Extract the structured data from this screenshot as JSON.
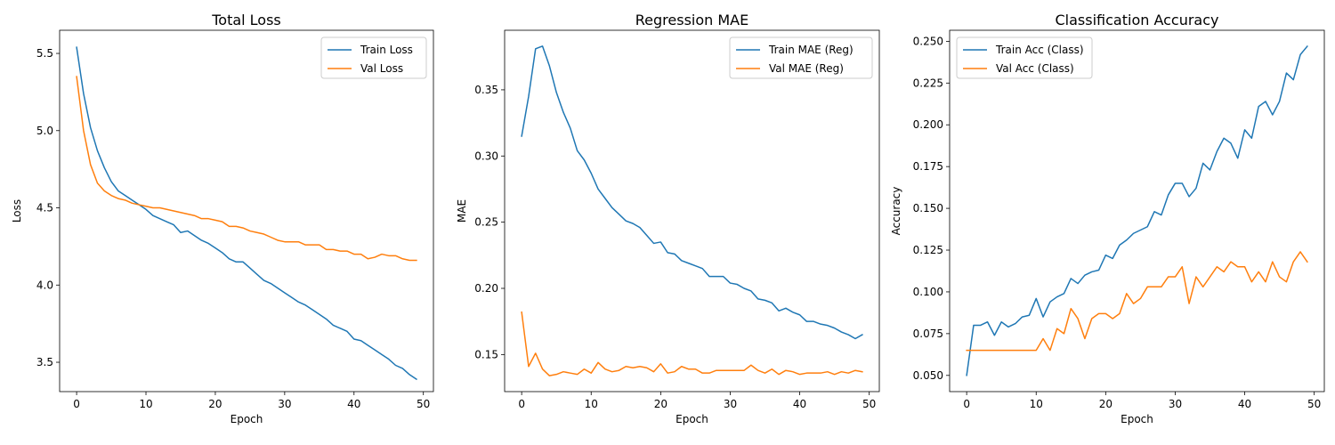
{
  "chart_data": [
    {
      "type": "line",
      "title": "Total Loss",
      "xlabel": "Epoch",
      "ylabel": "Loss",
      "xlim": [
        -2.45,
        51.45
      ],
      "ylim": [
        3.31,
        5.65
      ],
      "xticks": [
        0,
        10,
        20,
        30,
        40,
        50
      ],
      "yticks": [
        3.5,
        4.0,
        4.5,
        5.0,
        5.5
      ],
      "ytick_labels": [
        "3.5",
        "4.0",
        "4.5",
        "5.0",
        "5.5"
      ],
      "legend_position": "top-right",
      "grid": false,
      "series": [
        {
          "name": "Train Loss",
          "color": "#1f77b4",
          "values": [
            5.54,
            5.24,
            5.02,
            4.87,
            4.76,
            4.67,
            4.61,
            4.58,
            4.55,
            4.52,
            4.49,
            4.45,
            4.43,
            4.41,
            4.39,
            4.34,
            4.35,
            4.32,
            4.29,
            4.27,
            4.24,
            4.21,
            4.17,
            4.15,
            4.15,
            4.11,
            4.07,
            4.03,
            4.01,
            3.98,
            3.95,
            3.92,
            3.89,
            3.87,
            3.84,
            3.81,
            3.78,
            3.74,
            3.72,
            3.7,
            3.65,
            3.64,
            3.61,
            3.58,
            3.55,
            3.52,
            3.48,
            3.46,
            3.42,
            3.39
          ]
        },
        {
          "name": "Val Loss",
          "color": "#ff7f0e",
          "values": [
            5.35,
            5.0,
            4.78,
            4.66,
            4.61,
            4.58,
            4.56,
            4.55,
            4.53,
            4.52,
            4.51,
            4.5,
            4.5,
            4.49,
            4.48,
            4.47,
            4.46,
            4.45,
            4.43,
            4.43,
            4.42,
            4.41,
            4.38,
            4.38,
            4.37,
            4.35,
            4.34,
            4.33,
            4.31,
            4.29,
            4.28,
            4.28,
            4.28,
            4.26,
            4.26,
            4.26,
            4.23,
            4.23,
            4.22,
            4.22,
            4.2,
            4.2,
            4.17,
            4.18,
            4.2,
            4.19,
            4.19,
            4.17,
            4.16,
            4.16
          ]
        }
      ]
    },
    {
      "type": "line",
      "title": "Regression MAE",
      "xlabel": "Epoch",
      "ylabel": "MAE",
      "xlim": [
        -2.45,
        51.45
      ],
      "ylim": [
        0.122,
        0.395
      ],
      "xticks": [
        0,
        10,
        20,
        30,
        40,
        50
      ],
      "yticks": [
        0.15,
        0.2,
        0.25,
        0.3,
        0.35
      ],
      "ytick_labels": [
        "0.15",
        "0.20",
        "0.25",
        "0.30",
        "0.35"
      ],
      "legend_position": "top-right",
      "grid": false,
      "series": [
        {
          "name": "Train MAE (Reg)",
          "color": "#1f77b4",
          "values": [
            0.315,
            0.345,
            0.381,
            0.383,
            0.368,
            0.348,
            0.333,
            0.321,
            0.304,
            0.297,
            0.287,
            0.275,
            0.268,
            0.261,
            0.256,
            0.251,
            0.249,
            0.246,
            0.24,
            0.234,
            0.235,
            0.227,
            0.226,
            0.221,
            0.219,
            0.217,
            0.215,
            0.209,
            0.209,
            0.209,
            0.204,
            0.203,
            0.2,
            0.198,
            0.192,
            0.191,
            0.189,
            0.183,
            0.185,
            0.182,
            0.18,
            0.175,
            0.175,
            0.173,
            0.172,
            0.17,
            0.167,
            0.165,
            0.162,
            0.165
          ]
        },
        {
          "name": "Val MAE (Reg)",
          "color": "#ff7f0e",
          "values": [
            0.182,
            0.141,
            0.151,
            0.139,
            0.134,
            0.135,
            0.137,
            0.136,
            0.135,
            0.139,
            0.136,
            0.144,
            0.139,
            0.137,
            0.138,
            0.141,
            0.14,
            0.141,
            0.14,
            0.137,
            0.143,
            0.136,
            0.137,
            0.141,
            0.139,
            0.139,
            0.136,
            0.136,
            0.138,
            0.138,
            0.138,
            0.138,
            0.138,
            0.142,
            0.138,
            0.136,
            0.139,
            0.135,
            0.138,
            0.137,
            0.135,
            0.136,
            0.136,
            0.136,
            0.137,
            0.135,
            0.137,
            0.136,
            0.138,
            0.137
          ]
        }
      ]
    },
    {
      "type": "line",
      "title": "Classification Accuracy",
      "xlabel": "Epoch",
      "ylabel": "Accuracy",
      "xlim": [
        -2.45,
        51.45
      ],
      "ylim": [
        0.0403,
        0.2566
      ],
      "xticks": [
        0,
        10,
        20,
        30,
        40,
        50
      ],
      "yticks": [
        0.05,
        0.075,
        0.1,
        0.125,
        0.15,
        0.175,
        0.2,
        0.225,
        0.25
      ],
      "ytick_labels": [
        "0.050",
        "0.075",
        "0.100",
        "0.125",
        "0.150",
        "0.175",
        "0.200",
        "0.225",
        "0.250"
      ],
      "legend_position": "top-left",
      "grid": false,
      "series": [
        {
          "name": "Train Acc (Class)",
          "color": "#1f77b4",
          "values": [
            0.05,
            0.08,
            0.08,
            0.082,
            0.074,
            0.082,
            0.079,
            0.081,
            0.085,
            0.086,
            0.096,
            0.085,
            0.094,
            0.097,
            0.099,
            0.108,
            0.105,
            0.11,
            0.112,
            0.113,
            0.122,
            0.12,
            0.128,
            0.131,
            0.135,
            0.137,
            0.139,
            0.148,
            0.146,
            0.158,
            0.165,
            0.165,
            0.157,
            0.162,
            0.177,
            0.173,
            0.184,
            0.192,
            0.189,
            0.18,
            0.197,
            0.192,
            0.211,
            0.214,
            0.206,
            0.214,
            0.231,
            0.227,
            0.242,
            0.247
          ]
        },
        {
          "name": "Val Acc (Class)",
          "color": "#ff7f0e",
          "values": [
            0.065,
            0.065,
            0.065,
            0.065,
            0.065,
            0.065,
            0.065,
            0.065,
            0.065,
            0.065,
            0.065,
            0.072,
            0.065,
            0.078,
            0.075,
            0.09,
            0.084,
            0.072,
            0.084,
            0.087,
            0.087,
            0.084,
            0.087,
            0.099,
            0.093,
            0.096,
            0.103,
            0.103,
            0.103,
            0.109,
            0.109,
            0.115,
            0.093,
            0.109,
            0.103,
            0.109,
            0.115,
            0.112,
            0.118,
            0.115,
            0.115,
            0.106,
            0.112,
            0.106,
            0.118,
            0.109,
            0.106,
            0.118,
            0.124,
            0.118
          ]
        }
      ]
    }
  ]
}
